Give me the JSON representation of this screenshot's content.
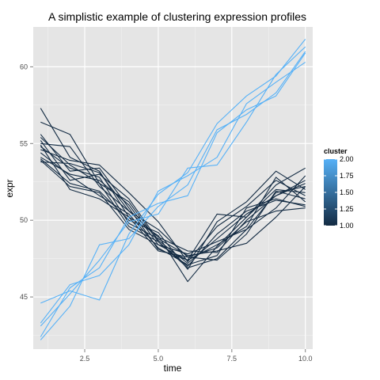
{
  "chart_data": {
    "type": "line",
    "title": "A simplistic example of clustering expression profiles",
    "xlabel": "time",
    "ylabel": "expr",
    "xlim": [
      0.75,
      10.25
    ],
    "ylim": [
      41.6,
      62.6
    ],
    "x_ticks": [
      2.5,
      5.0,
      7.5,
      10.0
    ],
    "x_tick_labels": [
      "2.5",
      "5.0",
      "7.5",
      "10.0"
    ],
    "y_ticks": [
      45,
      50,
      55,
      60
    ],
    "y_tick_labels": [
      "45",
      "50",
      "55",
      "60"
    ],
    "grid": true,
    "legend": {
      "title": "cluster",
      "position": "right",
      "type": "colorbar",
      "range": [
        1.0,
        2.0
      ],
      "labels": [
        "2.00",
        "1.75",
        "1.50",
        "1.25",
        "1.00"
      ],
      "low_color": "#132B43",
      "high_color": "#56B1F7"
    },
    "x": [
      1,
      2,
      3,
      4,
      5,
      6,
      7,
      8,
      9,
      10
    ],
    "series": [
      {
        "cluster": 1,
        "values": [
          57.3,
          54.1,
          53.2,
          50.2,
          49.0,
          46.0,
          48.3,
          50.2,
          52.3,
          53.4
        ]
      },
      {
        "cluster": 1,
        "values": [
          56.4,
          55.6,
          52.4,
          51.2,
          48.6,
          47.0,
          49.1,
          50.6,
          51.3,
          51.0
        ]
      },
      {
        "cluster": 1,
        "values": [
          55.6,
          53.2,
          53.4,
          50.8,
          48.1,
          47.4,
          48.4,
          49.6,
          52.8,
          51.2
        ]
      },
      {
        "cluster": 1,
        "values": [
          55.2,
          52.6,
          53.0,
          51.4,
          48.7,
          47.2,
          48.8,
          50.4,
          51.6,
          52.6
        ]
      },
      {
        "cluster": 1,
        "values": [
          55.0,
          54.8,
          52.2,
          50.6,
          49.4,
          47.6,
          47.4,
          49.1,
          51.9,
          51.4
        ]
      },
      {
        "cluster": 1,
        "values": [
          54.8,
          53.4,
          52.8,
          49.8,
          48.8,
          47.7,
          48.0,
          48.5,
          50.2,
          52.2
        ]
      },
      {
        "cluster": 1,
        "values": [
          54.6,
          53.9,
          53.6,
          51.8,
          49.9,
          47.3,
          49.6,
          50.9,
          52.6,
          51.6
        ]
      },
      {
        "cluster": 1,
        "values": [
          54.4,
          52.9,
          51.6,
          50.4,
          48.2,
          47.1,
          47.7,
          50.8,
          51.4,
          50.9
        ]
      },
      {
        "cluster": 1,
        "values": [
          54.1,
          53.0,
          52.6,
          51.0,
          48.4,
          47.8,
          48.6,
          49.4,
          50.8,
          52.9
        ]
      },
      {
        "cluster": 1,
        "values": [
          54.0,
          52.4,
          51.9,
          50.0,
          49.2,
          46.8,
          49.9,
          51.2,
          53.2,
          52.0
        ]
      },
      {
        "cluster": 1,
        "values": [
          53.8,
          53.7,
          53.1,
          50.6,
          48.9,
          48.0,
          47.9,
          50.0,
          51.6,
          52.4
        ]
      },
      {
        "cluster": 1,
        "values": [
          53.9,
          52.2,
          51.8,
          49.4,
          48.4,
          47.4,
          50.4,
          50.2,
          52.0,
          51.8
        ]
      },
      {
        "cluster": 1,
        "values": [
          55.4,
          53.6,
          52.4,
          49.6,
          48.6,
          46.9,
          47.5,
          49.4,
          51.8,
          52.2
        ]
      },
      {
        "cluster": 1,
        "values": [
          54.9,
          52.0,
          51.4,
          50.2,
          48.0,
          47.6,
          48.2,
          49.9,
          50.6,
          50.8
        ]
      },
      {
        "cluster": 2,
        "values": [
          44.6,
          45.4,
          44.8,
          49.1,
          51.7,
          53.1,
          56.3,
          58.1,
          59.4,
          61.8
        ]
      },
      {
        "cluster": 2,
        "values": [
          43.3,
          45.8,
          46.4,
          48.4,
          51.9,
          52.9,
          54.1,
          57.6,
          59.0,
          60.3
        ]
      },
      {
        "cluster": 2,
        "values": [
          42.2,
          44.4,
          48.4,
          48.8,
          50.9,
          52.3,
          55.9,
          56.9,
          58.3,
          61.0
        ]
      },
      {
        "cluster": 2,
        "values": [
          43.1,
          45.2,
          47.4,
          49.9,
          50.4,
          53.4,
          53.6,
          56.4,
          59.5,
          61.3
        ]
      },
      {
        "cluster": 2,
        "values": [
          42.4,
          45.6,
          46.9,
          50.2,
          51.1,
          51.6,
          55.7,
          57.2,
          58.1,
          60.9
        ]
      }
    ]
  }
}
